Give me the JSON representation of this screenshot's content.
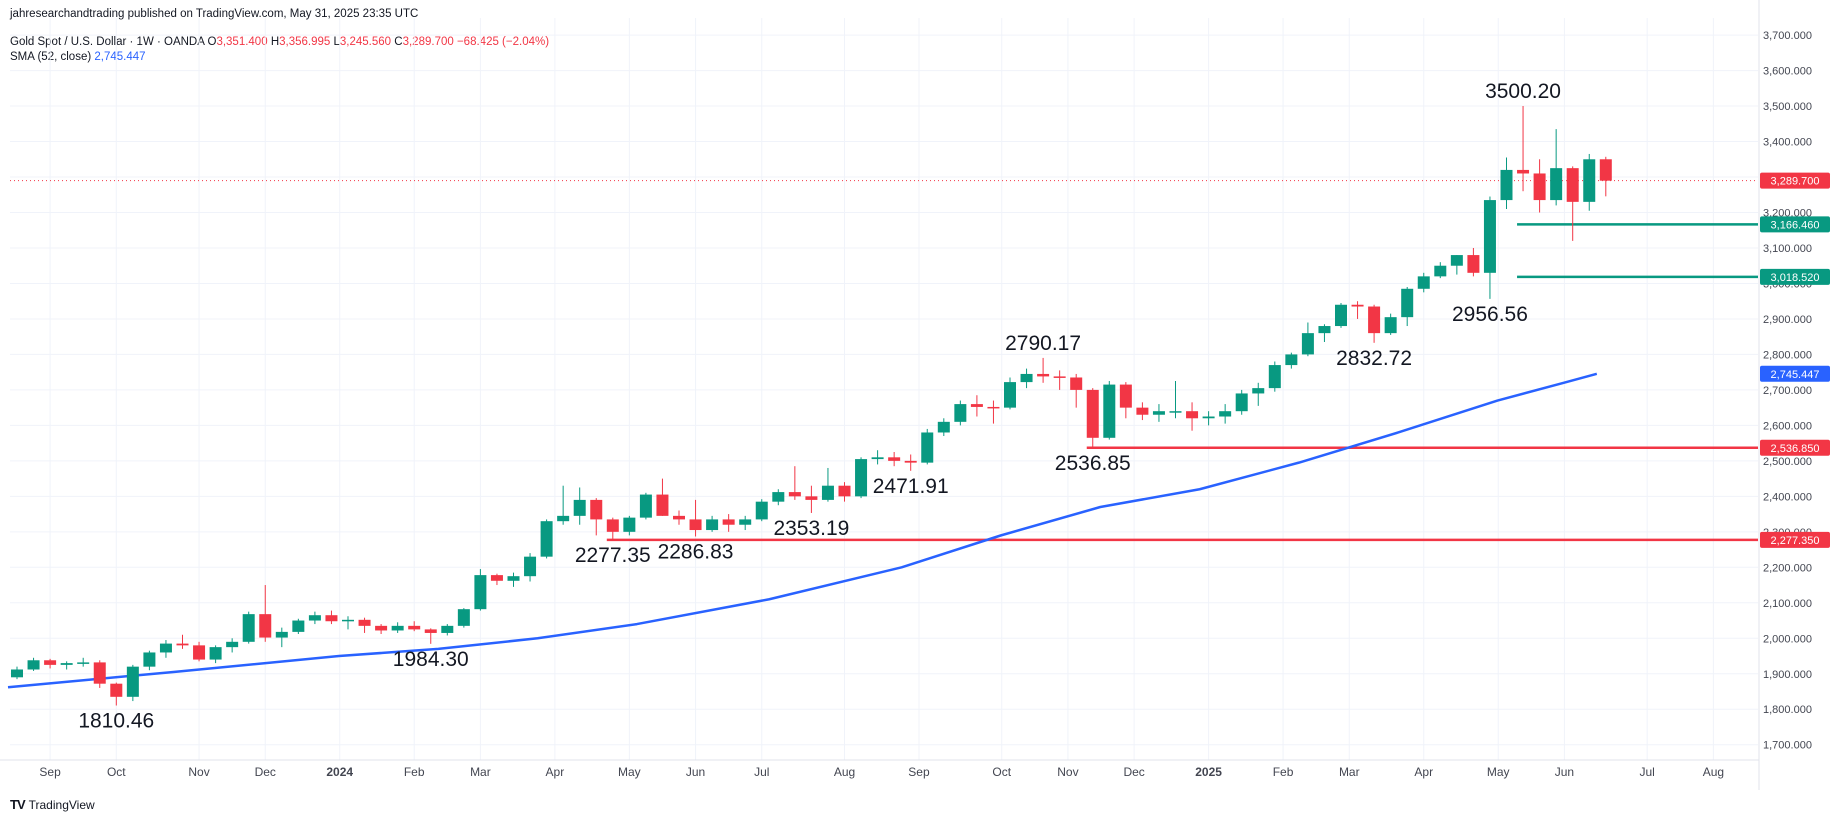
{
  "header": {
    "attribution": "jahresearchandtrading published on TradingView.com, May 31, 2025 23:35 UTC",
    "symbol": "Gold Spot / U.S. Dollar · 1W · OANDA",
    "ohlc": {
      "o_label": "O",
      "o": "3,351.400",
      "h_label": "H",
      "h": "3,356.995",
      "l_label": "L",
      "l": "3,245.560",
      "c_label": "C",
      "c": "3,289.700",
      "change": "−68.425 (−2.04%)"
    },
    "sma_label": "SMA (52, close)",
    "sma_value": "2,745.447"
  },
  "footer": {
    "logo_text": "TV",
    "brand": "TradingView"
  },
  "colors": {
    "up": "#089981",
    "down": "#f23645",
    "sma": "#2962ff",
    "grid": "#f0f3fa",
    "text": "#131722",
    "axis_text": "#434651"
  },
  "chart_data": {
    "type": "candlestick",
    "title": "Gold Spot / U.S. Dollar · 1W · OANDA",
    "ylim": [
      1640,
      3720
    ],
    "y_ticks": [
      1700,
      1800,
      1900,
      2000,
      2100,
      2200,
      2300,
      2400,
      2500,
      2600,
      2700,
      2800,
      2900,
      3000,
      3100,
      3200,
      3300,
      3400,
      3500,
      3600,
      3700
    ],
    "y_tick_labels": [
      "1,700.000",
      "1,800.000",
      "1,900.000",
      "2,000.000",
      "2,100.000",
      "2,200.000",
      "2,300.000",
      "2,400.000",
      "2,500.000",
      "2,600.000",
      "2,700.000",
      "2,800.000",
      "2,900.000",
      "3,000.000",
      "3,100.000",
      "3,200.000",
      "3,300.000",
      "3,400.000",
      "3,500.000",
      "3,600.000",
      "3,700.000"
    ],
    "x_ticks": [
      {
        "label": "Sep",
        "week": 2,
        "bold": false
      },
      {
        "label": "Oct",
        "week": 6,
        "bold": false
      },
      {
        "label": "Nov",
        "week": 11,
        "bold": false
      },
      {
        "label": "Dec",
        "week": 15,
        "bold": false
      },
      {
        "label": "2024",
        "week": 19.5,
        "bold": true
      },
      {
        "label": "Feb",
        "week": 24,
        "bold": false
      },
      {
        "label": "Mar",
        "week": 28,
        "bold": false
      },
      {
        "label": "Apr",
        "week": 32.5,
        "bold": false
      },
      {
        "label": "May",
        "week": 37,
        "bold": false
      },
      {
        "label": "Jun",
        "week": 41,
        "bold": false
      },
      {
        "label": "Jul",
        "week": 45,
        "bold": false
      },
      {
        "label": "Aug",
        "week": 50,
        "bold": false
      },
      {
        "label": "Sep",
        "week": 54.5,
        "bold": false
      },
      {
        "label": "Oct",
        "week": 59.5,
        "bold": false
      },
      {
        "label": "Nov",
        "week": 63.5,
        "bold": false
      },
      {
        "label": "Dec",
        "week": 67.5,
        "bold": false
      },
      {
        "label": "2025",
        "week": 72,
        "bold": true
      },
      {
        "label": "Feb",
        "week": 76.5,
        "bold": false
      },
      {
        "label": "Mar",
        "week": 80.5,
        "bold": false
      },
      {
        "label": "Apr",
        "week": 85,
        "bold": false
      },
      {
        "label": "May",
        "week": 89.5,
        "bold": false
      },
      {
        "label": "Jun",
        "week": 93.5,
        "bold": false
      },
      {
        "label": "Jul",
        "week": 98.5,
        "bold": false
      },
      {
        "label": "Aug",
        "week": 102.5,
        "bold": false
      }
    ],
    "candles": [
      {
        "o": 1890,
        "h": 1920,
        "l": 1885,
        "c": 1912
      },
      {
        "o": 1912,
        "h": 1945,
        "l": 1908,
        "c": 1938
      },
      {
        "o": 1938,
        "h": 1942,
        "l": 1915,
        "c": 1925
      },
      {
        "o": 1925,
        "h": 1935,
        "l": 1912,
        "c": 1930
      },
      {
        "o": 1930,
        "h": 1945,
        "l": 1920,
        "c": 1932
      },
      {
        "o": 1932,
        "h": 1938,
        "l": 1860,
        "c": 1872
      },
      {
        "o": 1872,
        "h": 1875,
        "l": 1810.46,
        "c": 1835
      },
      {
        "o": 1835,
        "h": 1925,
        "l": 1823,
        "c": 1920
      },
      {
        "o": 1920,
        "h": 1965,
        "l": 1910,
        "c": 1960
      },
      {
        "o": 1960,
        "h": 1995,
        "l": 1945,
        "c": 1985
      },
      {
        "o": 1985,
        "h": 2010,
        "l": 1970,
        "c": 1980
      },
      {
        "o": 1980,
        "h": 1990,
        "l": 1935,
        "c": 1940
      },
      {
        "o": 1940,
        "h": 1980,
        "l": 1930,
        "c": 1975
      },
      {
        "o": 1975,
        "h": 2000,
        "l": 1960,
        "c": 1990
      },
      {
        "o": 1990,
        "h": 2075,
        "l": 1985,
        "c": 2068
      },
      {
        "o": 2068,
        "h": 2150,
        "l": 1990,
        "c": 2002
      },
      {
        "o": 2002,
        "h": 2030,
        "l": 1975,
        "c": 2018
      },
      {
        "o": 2018,
        "h": 2055,
        "l": 2012,
        "c": 2050
      },
      {
        "o": 2050,
        "h": 2075,
        "l": 2040,
        "c": 2065
      },
      {
        "o": 2065,
        "h": 2078,
        "l": 2040,
        "c": 2048
      },
      {
        "o": 2048,
        "h": 2062,
        "l": 2025,
        "c": 2052
      },
      {
        "o": 2052,
        "h": 2058,
        "l": 2015,
        "c": 2035
      },
      {
        "o": 2035,
        "h": 2040,
        "l": 2012,
        "c": 2022
      },
      {
        "o": 2022,
        "h": 2045,
        "l": 2015,
        "c": 2035
      },
      {
        "o": 2035,
        "h": 2048,
        "l": 2020,
        "c": 2025
      },
      {
        "o": 2025,
        "h": 2028,
        "l": 1984.3,
        "c": 2015
      },
      {
        "o": 2015,
        "h": 2040,
        "l": 2008,
        "c": 2035
      },
      {
        "o": 2035,
        "h": 2085,
        "l": 2030,
        "c": 2082
      },
      {
        "o": 2082,
        "h": 2195,
        "l": 2078,
        "c": 2178
      },
      {
        "o": 2178,
        "h": 2182,
        "l": 2150,
        "c": 2162
      },
      {
        "o": 2162,
        "h": 2185,
        "l": 2145,
        "c": 2175
      },
      {
        "o": 2175,
        "h": 2240,
        "l": 2160,
        "c": 2230
      },
      {
        "o": 2230,
        "h": 2335,
        "l": 2225,
        "c": 2330
      },
      {
        "o": 2330,
        "h": 2430,
        "l": 2320,
        "c": 2345
      },
      {
        "o": 2345,
        "h": 2425,
        "l": 2320,
        "c": 2390
      },
      {
        "o": 2390,
        "h": 2395,
        "l": 2290,
        "c": 2335
      },
      {
        "o": 2335,
        "h": 2340,
        "l": 2277.35,
        "c": 2300
      },
      {
        "o": 2300,
        "h": 2345,
        "l": 2290,
        "c": 2340
      },
      {
        "o": 2340,
        "h": 2410,
        "l": 2335,
        "c": 2405
      },
      {
        "o": 2405,
        "h": 2450,
        "l": 2345,
        "c": 2345
      },
      {
        "o": 2345,
        "h": 2360,
        "l": 2320,
        "c": 2335
      },
      {
        "o": 2335,
        "h": 2390,
        "l": 2286.83,
        "c": 2305
      },
      {
        "o": 2305,
        "h": 2345,
        "l": 2300,
        "c": 2335
      },
      {
        "o": 2335,
        "h": 2350,
        "l": 2300,
        "c": 2320
      },
      {
        "o": 2320,
        "h": 2345,
        "l": 2305,
        "c": 2335
      },
      {
        "o": 2335,
        "h": 2392,
        "l": 2330,
        "c": 2385
      },
      {
        "o": 2385,
        "h": 2420,
        "l": 2375,
        "c": 2412
      },
      {
        "o": 2412,
        "h": 2485,
        "l": 2390,
        "c": 2400
      },
      {
        "o": 2400,
        "h": 2430,
        "l": 2353.19,
        "c": 2390
      },
      {
        "o": 2390,
        "h": 2480,
        "l": 2385,
        "c": 2430
      },
      {
        "o": 2430,
        "h": 2440,
        "l": 2385,
        "c": 2400
      },
      {
        "o": 2400,
        "h": 2510,
        "l": 2395,
        "c": 2505
      },
      {
        "o": 2505,
        "h": 2530,
        "l": 2490,
        "c": 2510
      },
      {
        "o": 2510,
        "h": 2525,
        "l": 2485,
        "c": 2500
      },
      {
        "o": 2500,
        "h": 2518,
        "l": 2471.91,
        "c": 2495
      },
      {
        "o": 2495,
        "h": 2590,
        "l": 2490,
        "c": 2580
      },
      {
        "o": 2580,
        "h": 2620,
        "l": 2570,
        "c": 2610
      },
      {
        "o": 2610,
        "h": 2670,
        "l": 2600,
        "c": 2660
      },
      {
        "o": 2660,
        "h": 2685,
        "l": 2625,
        "c": 2652
      },
      {
        "o": 2652,
        "h": 2670,
        "l": 2605,
        "c": 2650
      },
      {
        "o": 2650,
        "h": 2735,
        "l": 2645,
        "c": 2722
      },
      {
        "o": 2722,
        "h": 2760,
        "l": 2705,
        "c": 2745
      },
      {
        "o": 2745,
        "h": 2790.17,
        "l": 2720,
        "c": 2738
      },
      {
        "o": 2738,
        "h": 2755,
        "l": 2700,
        "c": 2735
      },
      {
        "o": 2735,
        "h": 2745,
        "l": 2650,
        "c": 2700
      },
      {
        "o": 2700,
        "h": 2705,
        "l": 2536.85,
        "c": 2565
      },
      {
        "o": 2565,
        "h": 2725,
        "l": 2560,
        "c": 2715
      },
      {
        "o": 2715,
        "h": 2722,
        "l": 2620,
        "c": 2650
      },
      {
        "o": 2650,
        "h": 2665,
        "l": 2615,
        "c": 2630
      },
      {
        "o": 2630,
        "h": 2660,
        "l": 2610,
        "c": 2640
      },
      {
        "o": 2640,
        "h": 2725,
        "l": 2620,
        "c": 2640
      },
      {
        "o": 2640,
        "h": 2665,
        "l": 2585,
        "c": 2620
      },
      {
        "o": 2620,
        "h": 2640,
        "l": 2600,
        "c": 2625
      },
      {
        "o": 2625,
        "h": 2660,
        "l": 2605,
        "c": 2640
      },
      {
        "o": 2640,
        "h": 2700,
        "l": 2630,
        "c": 2690
      },
      {
        "o": 2690,
        "h": 2720,
        "l": 2655,
        "c": 2705
      },
      {
        "o": 2705,
        "h": 2780,
        "l": 2695,
        "c": 2770
      },
      {
        "o": 2770,
        "h": 2805,
        "l": 2760,
        "c": 2800
      },
      {
        "o": 2800,
        "h": 2890,
        "l": 2795,
        "c": 2860
      },
      {
        "o": 2860,
        "h": 2885,
        "l": 2835,
        "c": 2880
      },
      {
        "o": 2880,
        "h": 2945,
        "l": 2875,
        "c": 2940
      },
      {
        "o": 2940,
        "h": 2950,
        "l": 2900,
        "c": 2935
      },
      {
        "o": 2935,
        "h": 2940,
        "l": 2832.72,
        "c": 2860
      },
      {
        "o": 2860,
        "h": 2915,
        "l": 2855,
        "c": 2905
      },
      {
        "o": 2905,
        "h": 2990,
        "l": 2880,
        "c": 2985
      },
      {
        "o": 2985,
        "h": 3030,
        "l": 2975,
        "c": 3020
      },
      {
        "o": 3020,
        "h": 3060,
        "l": 3015,
        "c": 3050
      },
      {
        "o": 3050,
        "h": 3080,
        "l": 3025,
        "c": 3080
      },
      {
        "o": 3080,
        "h": 3100,
        "l": 3020,
        "c": 3030
      },
      {
        "o": 3030,
        "h": 3245,
        "l": 2956.56,
        "c": 3235
      },
      {
        "o": 3235,
        "h": 3355,
        "l": 3210,
        "c": 3320
      },
      {
        "o": 3320,
        "h": 3500.2,
        "l": 3260,
        "c": 3310
      },
      {
        "o": 3310,
        "h": 3350,
        "l": 3200,
        "c": 3235
      },
      {
        "o": 3235,
        "h": 3435,
        "l": 3220,
        "c": 3325
      },
      {
        "o": 3325,
        "h": 3330,
        "l": 3120,
        "c": 3230
      },
      {
        "o": 3230,
        "h": 3365,
        "l": 3205,
        "c": 3350
      },
      {
        "o": 3350,
        "h": 3356.995,
        "l": 3245.56,
        "c": 3289.7
      }
    ],
    "sma": [
      {
        "week": 0,
        "value": 1862
      },
      {
        "week": 10,
        "value": 1905
      },
      {
        "week": 20,
        "value": 1950
      },
      {
        "week": 26,
        "value": 1970
      },
      {
        "week": 32,
        "value": 2000
      },
      {
        "week": 38,
        "value": 2040
      },
      {
        "week": 46,
        "value": 2110
      },
      {
        "week": 54,
        "value": 2200
      },
      {
        "week": 60,
        "value": 2290
      },
      {
        "week": 66,
        "value": 2370
      },
      {
        "week": 72,
        "value": 2420
      },
      {
        "week": 78,
        "value": 2495
      },
      {
        "week": 84,
        "value": 2580
      },
      {
        "week": 90,
        "value": 2670
      },
      {
        "week": 94,
        "value": 2720
      },
      {
        "week": 96,
        "value": 2745.447
      }
    ],
    "annotations": [
      {
        "text": "1810.46",
        "week": 6,
        "value": 1810.46,
        "position": "below"
      },
      {
        "text": "1984.30",
        "week": 25,
        "value": 1984.3,
        "position": "below"
      },
      {
        "text": "2277.35",
        "week": 36,
        "value": 2277.35,
        "position": "below"
      },
      {
        "text": "2286.83",
        "week": 41,
        "value": 2286.83,
        "position": "below"
      },
      {
        "text": "2353.19",
        "week": 48,
        "value": 2353.19,
        "position": "below"
      },
      {
        "text": "2471.91",
        "week": 54,
        "value": 2471.91,
        "position": "below"
      },
      {
        "text": "2790.17",
        "week": 62,
        "value": 2790.17,
        "position": "above"
      },
      {
        "text": "2536.85",
        "week": 65,
        "value": 2536.85,
        "position": "below"
      },
      {
        "text": "2832.72",
        "week": 82,
        "value": 2832.72,
        "position": "below"
      },
      {
        "text": "2956.56",
        "week": 89,
        "value": 2956.56,
        "position": "below"
      },
      {
        "text": "3500.20",
        "week": 91,
        "value": 3500.2,
        "position": "above"
      }
    ],
    "horizontal_lines": [
      {
        "value": 2277.35,
        "label": "2,277.350",
        "color": "#f23645",
        "from_week": 36
      },
      {
        "value": 2536.85,
        "label": "2,536.850",
        "color": "#f23645",
        "from_week": 65
      },
      {
        "value": 3166.46,
        "label": "3,166.460",
        "color": "#089981",
        "from_week": 91
      },
      {
        "value": 3018.52,
        "label": "3,018.520",
        "color": "#089981",
        "from_week": 91
      }
    ],
    "current_price": {
      "value": 3289.7,
      "label": "3,289.700",
      "color": "#f23645"
    },
    "sma_axis_label": {
      "value": 2745.447,
      "label": "2,745.447",
      "color": "#2962ff"
    }
  }
}
